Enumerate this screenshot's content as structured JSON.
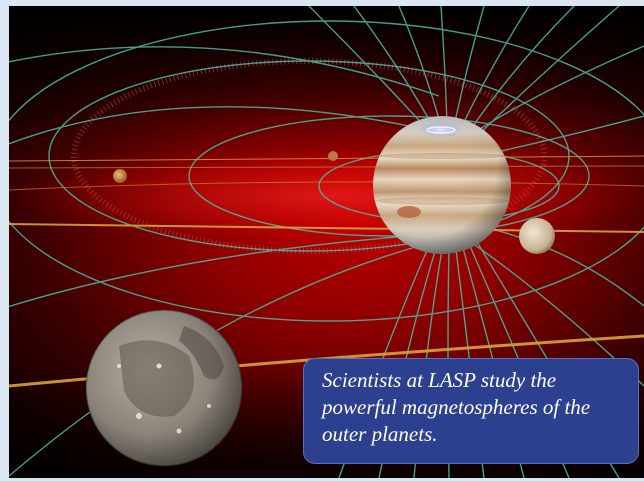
{
  "caption": {
    "lead": "Scientists at LASP study the powerful magnetospheres of the outer planets."
  },
  "scene": {
    "subject": "jupiter-magnetosphere-illustration",
    "objects": [
      "jupiter",
      "io",
      "europa",
      "ganymede",
      "magnetic-field-lines",
      "io-plasma-torus",
      "orbit-lines"
    ]
  },
  "colors": {
    "frame": "#dbe6f3",
    "background": "#000000",
    "glow": "#b00000",
    "field_lines": "#4fb9a4",
    "orbit_lines": "#c9962e",
    "caption_bg": "#2d3f8f",
    "caption_text": "#ffffff"
  }
}
